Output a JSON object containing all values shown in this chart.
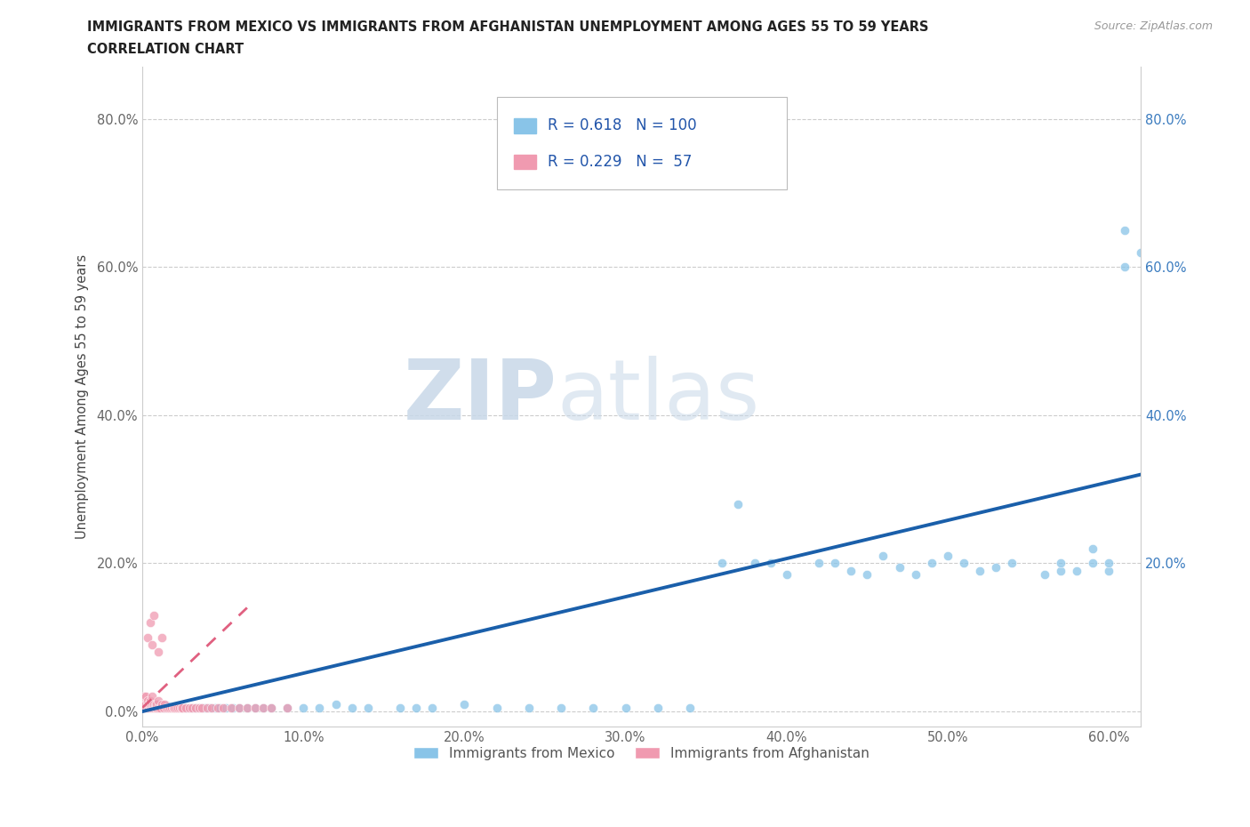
{
  "title_line1": "IMMIGRANTS FROM MEXICO VS IMMIGRANTS FROM AFGHANISTAN UNEMPLOYMENT AMONG AGES 55 TO 59 YEARS",
  "title_line2": "CORRELATION CHART",
  "source_text": "Source: ZipAtlas.com",
  "ylabel": "Unemployment Among Ages 55 to 59 years",
  "xlim": [
    0.0,
    0.62
  ],
  "ylim": [
    -0.02,
    0.87
  ],
  "xticks": [
    0.0,
    0.1,
    0.2,
    0.3,
    0.4,
    0.5,
    0.6
  ],
  "xticklabels": [
    "0.0%",
    "10.0%",
    "20.0%",
    "30.0%",
    "40.0%",
    "50.0%",
    "60.0%"
  ],
  "yticks": [
    0.0,
    0.2,
    0.4,
    0.6,
    0.8
  ],
  "yticklabels": [
    "0.0%",
    "20.0%",
    "40.0%",
    "60.0%",
    "80.0%"
  ],
  "right_ytick_labels": [
    "20.0%",
    "40.0%",
    "60.0%",
    "80.0%"
  ],
  "mexico_color": "#89c4e8",
  "afghanistan_color": "#f09ab0",
  "mexico_line_color": "#1a5faa",
  "afghanistan_line_color": "#e06080",
  "R_mexico": 0.618,
  "N_mexico": 100,
  "R_afghanistan": 0.229,
  "N_afghanistan": 57,
  "watermark_zip": "ZIP",
  "watermark_atlas": "atlas",
  "legend_label_mexico": "Immigrants from Mexico",
  "legend_label_afghanistan": "Immigrants from Afghanistan",
  "mexico_x": [
    0.001,
    0.002,
    0.002,
    0.003,
    0.003,
    0.004,
    0.004,
    0.005,
    0.005,
    0.006,
    0.006,
    0.007,
    0.007,
    0.008,
    0.008,
    0.009,
    0.009,
    0.01,
    0.01,
    0.01,
    0.011,
    0.012,
    0.012,
    0.013,
    0.014,
    0.015,
    0.015,
    0.016,
    0.017,
    0.018,
    0.019,
    0.02,
    0.021,
    0.022,
    0.023,
    0.024,
    0.025,
    0.027,
    0.029,
    0.031,
    0.033,
    0.035,
    0.037,
    0.039,
    0.042,
    0.045,
    0.048,
    0.052,
    0.056,
    0.06,
    0.065,
    0.07,
    0.075,
    0.08,
    0.09,
    0.1,
    0.11,
    0.12,
    0.13,
    0.14,
    0.16,
    0.17,
    0.18,
    0.2,
    0.22,
    0.24,
    0.26,
    0.28,
    0.3,
    0.32,
    0.34,
    0.36,
    0.37,
    0.38,
    0.39,
    0.4,
    0.42,
    0.43,
    0.44,
    0.45,
    0.46,
    0.47,
    0.48,
    0.49,
    0.5,
    0.51,
    0.52,
    0.53,
    0.54,
    0.56,
    0.57,
    0.57,
    0.58,
    0.59,
    0.59,
    0.6,
    0.6,
    0.61,
    0.61,
    0.62
  ],
  "mexico_y": [
    0.005,
    0.005,
    0.01,
    0.005,
    0.01,
    0.005,
    0.01,
    0.005,
    0.008,
    0.005,
    0.008,
    0.005,
    0.01,
    0.005,
    0.008,
    0.005,
    0.01,
    0.005,
    0.008,
    0.01,
    0.005,
    0.005,
    0.008,
    0.005,
    0.005,
    0.005,
    0.008,
    0.005,
    0.005,
    0.005,
    0.005,
    0.005,
    0.005,
    0.005,
    0.005,
    0.005,
    0.005,
    0.005,
    0.005,
    0.005,
    0.005,
    0.005,
    0.005,
    0.005,
    0.005,
    0.005,
    0.005,
    0.005,
    0.005,
    0.005,
    0.005,
    0.005,
    0.005,
    0.005,
    0.005,
    0.005,
    0.005,
    0.01,
    0.005,
    0.005,
    0.005,
    0.005,
    0.005,
    0.01,
    0.005,
    0.005,
    0.005,
    0.005,
    0.005,
    0.005,
    0.005,
    0.2,
    0.28,
    0.2,
    0.2,
    0.185,
    0.2,
    0.2,
    0.19,
    0.185,
    0.21,
    0.195,
    0.185,
    0.2,
    0.21,
    0.2,
    0.19,
    0.195,
    0.2,
    0.185,
    0.19,
    0.2,
    0.19,
    0.2,
    0.22,
    0.19,
    0.2,
    0.65,
    0.6,
    0.62
  ],
  "afghanistan_x": [
    0.001,
    0.001,
    0.001,
    0.002,
    0.002,
    0.002,
    0.003,
    0.003,
    0.003,
    0.004,
    0.004,
    0.005,
    0.005,
    0.005,
    0.006,
    0.006,
    0.006,
    0.007,
    0.007,
    0.008,
    0.008,
    0.009,
    0.009,
    0.01,
    0.01,
    0.011,
    0.012,
    0.013,
    0.014,
    0.015,
    0.016,
    0.017,
    0.018,
    0.019,
    0.02,
    0.021,
    0.022,
    0.023,
    0.024,
    0.025,
    0.027,
    0.029,
    0.031,
    0.033,
    0.035,
    0.037,
    0.04,
    0.043,
    0.047,
    0.05,
    0.055,
    0.06,
    0.065,
    0.07,
    0.075,
    0.08,
    0.09
  ],
  "afghanistan_y": [
    0.005,
    0.01,
    0.02,
    0.005,
    0.01,
    0.02,
    0.005,
    0.01,
    0.015,
    0.005,
    0.01,
    0.005,
    0.01,
    0.015,
    0.005,
    0.01,
    0.02,
    0.005,
    0.01,
    0.005,
    0.01,
    0.005,
    0.01,
    0.005,
    0.015,
    0.005,
    0.01,
    0.005,
    0.01,
    0.005,
    0.005,
    0.005,
    0.005,
    0.005,
    0.005,
    0.005,
    0.005,
    0.005,
    0.005,
    0.005,
    0.005,
    0.005,
    0.005,
    0.005,
    0.005,
    0.005,
    0.005,
    0.005,
    0.005,
    0.005,
    0.005,
    0.005,
    0.005,
    0.005,
    0.005,
    0.005,
    0.005
  ],
  "afghanistan_outlier_x": [
    0.003,
    0.005,
    0.006,
    0.007,
    0.01,
    0.012
  ],
  "afghanistan_outlier_y": [
    0.1,
    0.12,
    0.09,
    0.13,
    0.08,
    0.1
  ]
}
